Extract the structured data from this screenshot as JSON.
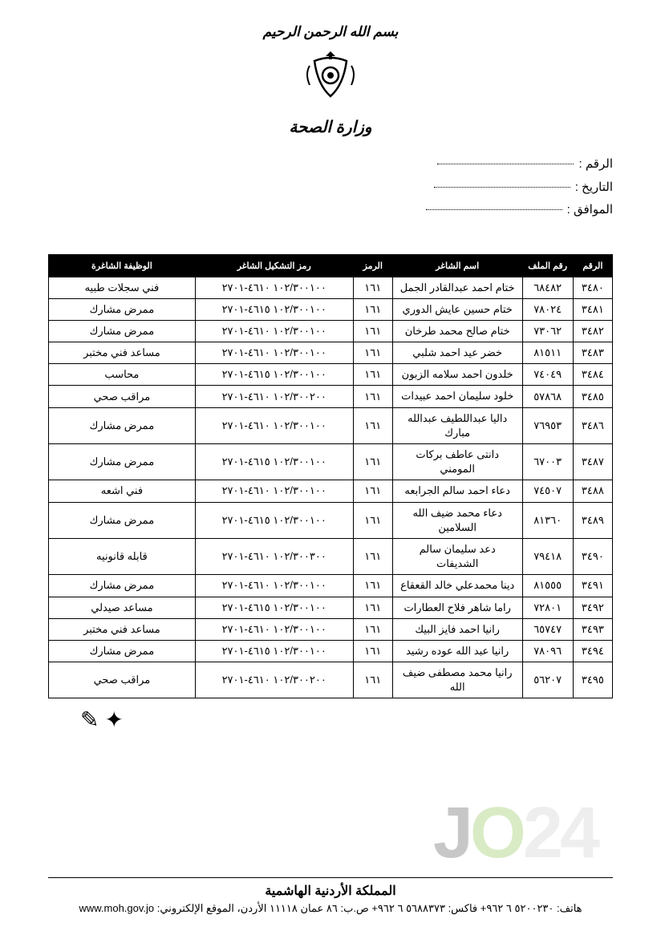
{
  "header": {
    "bismillah": "بسم الله الرحمن الرحيم",
    "ministry": "وزارة الصحة"
  },
  "meta": {
    "label_number": "الرقم :",
    "label_date": "التاريخ :",
    "label_corresponding": "الموافق :"
  },
  "table": {
    "headers": {
      "seq": "الرقم",
      "file": "رقم الملف",
      "name": "اسم الشاغر",
      "c1": "الرمز",
      "c2": "رمز التشكيل الشاغر",
      "job": "الوظيفة الشاغرة"
    },
    "rows": [
      {
        "seq": "٣٤٨٠",
        "id": "٦٨٤٨٢",
        "name": "ختام احمد عبدالقادر الجمل",
        "c1": "١٦١",
        "c2": "١٠٢/٣٠٠١٠٠ ٤٦١٠-٢٧٠١",
        "job": "فني سجلات طبيه"
      },
      {
        "seq": "٣٤٨١",
        "id": "٧٨٠٢٤",
        "name": "ختام حسين عايش الدوري",
        "c1": "١٦١",
        "c2": "١٠٢/٣٠٠١٠٠ ٤٦١٥-٢٧٠١",
        "job": "ممرض مشارك"
      },
      {
        "seq": "٣٤٨٢",
        "id": "٧٣٠٦٢",
        "name": "ختام صالح محمد طرخان",
        "c1": "١٦١",
        "c2": "١٠٢/٣٠٠١٠٠ ٤٦١٠-٢٧٠١",
        "job": "ممرض مشارك"
      },
      {
        "seq": "٣٤٨٣",
        "id": "٨١٥١١",
        "name": "خضر عيد احمد شلبي",
        "c1": "١٦١",
        "c2": "١٠٢/٣٠٠١٠٠ ٤٦١٠-٢٧٠١",
        "job": "مساعد فني مختبر"
      },
      {
        "seq": "٣٤٨٤",
        "id": "٧٤٠٤٩",
        "name": "خلدون احمد سلامه الزبون",
        "c1": "١٦١",
        "c2": "١٠٢/٣٠٠١٠٠ ٤٦١٥-٢٧٠١",
        "job": "محاسب"
      },
      {
        "seq": "٣٤٨٥",
        "id": "٥٧٨٦٨",
        "name": "خلود سليمان احمد عبيدات",
        "c1": "١٦١",
        "c2": "١٠٢/٣٠٠٢٠٠ ٤٦١٠-٢٧٠١",
        "job": "مراقب صحي"
      },
      {
        "seq": "٣٤٨٦",
        "id": "٧٦٩٥٣",
        "name": "داليا عبداللطيف عبدالله مبارك",
        "c1": "١٦١",
        "c2": "١٠٢/٣٠٠١٠٠ ٤٦١٠-٢٧٠١",
        "job": "ممرض مشارك"
      },
      {
        "seq": "٣٤٨٧",
        "id": "٦٧٠٠٣",
        "name": "دانتى عاطف بركات المومني",
        "c1": "١٦١",
        "c2": "١٠٢/٣٠٠١٠٠ ٤٦١٥-٢٧٠١",
        "job": "ممرض مشارك"
      },
      {
        "seq": "٣٤٨٨",
        "id": "٧٤٥٠٧",
        "name": "دعاء احمد سالم الجرابعه",
        "c1": "١٦١",
        "c2": "١٠٢/٣٠٠١٠٠ ٤٦١٠-٢٧٠١",
        "job": "فني اشعه"
      },
      {
        "seq": "٣٤٨٩",
        "id": "٨١٣٦٠",
        "name": "دعاء محمد ضيف الله السلامين",
        "c1": "١٦١",
        "c2": "١٠٢/٣٠٠١٠٠ ٤٦١٥-٢٧٠١",
        "job": "ممرض مشارك"
      },
      {
        "seq": "٣٤٩٠",
        "id": "٧٩٤١٨",
        "name": "دعد سليمان سالم الشديفات",
        "c1": "١٦١",
        "c2": "١٠٢/٣٠٠٣٠٠ ٤٦١٠-٢٧٠١",
        "job": "قابله قانونيه"
      },
      {
        "seq": "٣٤٩١",
        "id": "٨١٥٥٥",
        "name": "دينا محمدعلي خالد القعقاع",
        "c1": "١٦١",
        "c2": "١٠٢/٣٠٠١٠٠ ٤٦١٠-٢٧٠١",
        "job": "ممرض مشارك"
      },
      {
        "seq": "٣٤٩٢",
        "id": "٧٢٨٠١",
        "name": "راما شاهر فلاح العطارات",
        "c1": "١٦١",
        "c2": "١٠٢/٣٠٠١٠٠ ٤٦١٥-٢٧٠١",
        "job": "مساعد صيدلي"
      },
      {
        "seq": "٣٤٩٣",
        "id": "٦٥٧٤٧",
        "name": "رانيا احمد فايز البيك",
        "c1": "١٦١",
        "c2": "١٠٢/٣٠٠١٠٠ ٤٦١٠-٢٧٠١",
        "job": "مساعد فني مختبر"
      },
      {
        "seq": "٣٤٩٤",
        "id": "٧٨٠٩٦",
        "name": "رانيا عبد الله عوده رشيد",
        "c1": "١٦١",
        "c2": "١٠٢/٣٠٠١٠٠ ٤٦١٥-٢٧٠١",
        "job": "ممرض مشارك"
      },
      {
        "seq": "٣٤٩٥",
        "id": "٥٦٢٠٧",
        "name": "رانيا محمد مصطفى ضيف الله",
        "c1": "١٦١",
        "c2": "١٠٢/٣٠٠٢٠٠ ٤٦١٠-٢٧٠١",
        "job": "مراقب صحي"
      }
    ]
  },
  "footer": {
    "kingdom": "المملكة الأردنية الهاشمية",
    "contact": "هاتف: ٥٢٠٠٢٣٠ ٦ ٩٦٢+ فاكس: ٥٦٨٨٣٧٣ ٦ ٩٦٢+ ص.ب: ٨٦ عمان ١١١١٨ الأردن، الموقع الإلكتروني: www.moh.gov.jo"
  },
  "watermark": {
    "t1": "J",
    "t2": "O",
    "t3": "24"
  }
}
